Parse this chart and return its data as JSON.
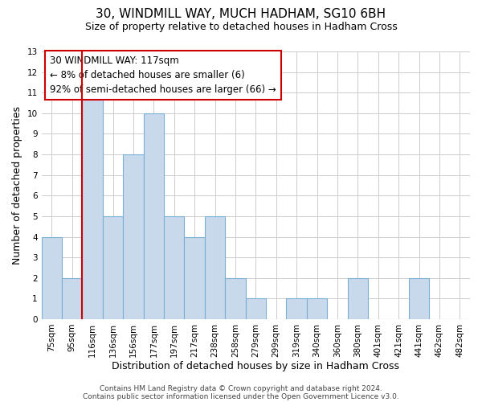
{
  "title": "30, WINDMILL WAY, MUCH HADHAM, SG10 6BH",
  "subtitle": "Size of property relative to detached houses in Hadham Cross",
  "xlabel": "Distribution of detached houses by size in Hadham Cross",
  "ylabel": "Number of detached properties",
  "bar_labels": [
    "75sqm",
    "95sqm",
    "116sqm",
    "136sqm",
    "156sqm",
    "177sqm",
    "197sqm",
    "217sqm",
    "238sqm",
    "258sqm",
    "279sqm",
    "299sqm",
    "319sqm",
    "340sqm",
    "360sqm",
    "380sqm",
    "401sqm",
    "421sqm",
    "441sqm",
    "462sqm",
    "482sqm"
  ],
  "bar_heights": [
    4,
    2,
    11,
    5,
    8,
    10,
    5,
    4,
    5,
    2,
    1,
    0,
    1,
    1,
    0,
    2,
    0,
    0,
    2,
    0,
    0
  ],
  "bar_color": "#c8d9ec",
  "bar_edge_color": "#7aafd4",
  "marker_index": 2,
  "marker_color": "#cc0000",
  "ylim": [
    0,
    13
  ],
  "yticks": [
    0,
    1,
    2,
    3,
    4,
    5,
    6,
    7,
    8,
    9,
    10,
    11,
    12,
    13
  ],
  "annotation_title": "30 WINDMILL WAY: 117sqm",
  "annotation_line1": "← 8% of detached houses are smaller (6)",
  "annotation_line2": "92% of semi-detached houses are larger (66) →",
  "footer1": "Contains HM Land Registry data © Crown copyright and database right 2024.",
  "footer2": "Contains public sector information licensed under the Open Government Licence v3.0.",
  "bg_color": "#ffffff",
  "grid_color": "#cccccc",
  "title_fontsize": 11,
  "subtitle_fontsize": 9,
  "axis_label_fontsize": 9,
  "tick_fontsize": 7.5,
  "annotation_fontsize": 8.5,
  "footer_fontsize": 6.5
}
